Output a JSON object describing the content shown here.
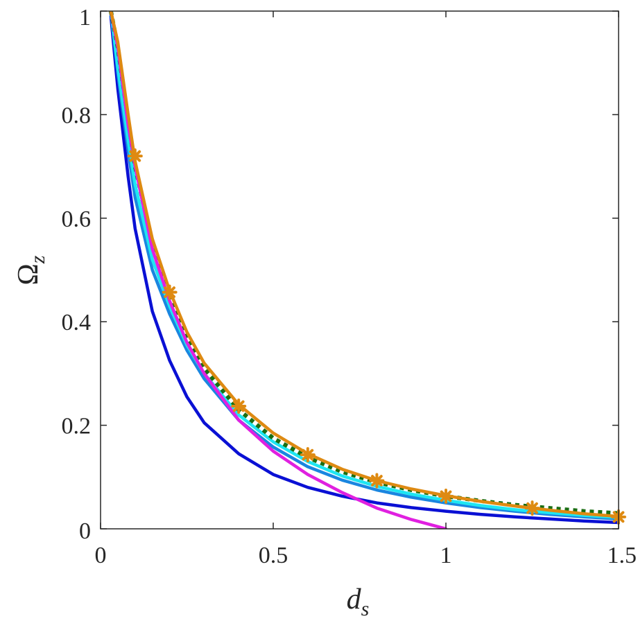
{
  "chart_data": {
    "type": "line",
    "xlabel": "d",
    "xlabel_sub": "s",
    "ylabel": "Ω",
    "ylabel_sub": "z",
    "xlim": [
      0,
      1.5
    ],
    "ylim": [
      0,
      1
    ],
    "xticks": [
      0,
      0.5,
      1,
      1.5
    ],
    "xtick_labels": [
      "0",
      "0.5",
      "1",
      "1.5"
    ],
    "yticks": [
      0,
      0.2,
      0.4,
      0.6,
      0.8,
      1
    ],
    "ytick_labels": [
      "0",
      "0.2",
      "0.4",
      "0.6",
      "0.8",
      "1"
    ],
    "grid": false,
    "series": [
      {
        "color": "#0a10d4",
        "style": "solid",
        "x": [
          0.03,
          0.05,
          0.08,
          0.1,
          0.15,
          0.2,
          0.25,
          0.3,
          0.4,
          0.5,
          0.6,
          0.7,
          0.8,
          0.9,
          1.0,
          1.1,
          1.2,
          1.3,
          1.4,
          1.5
        ],
        "y": [
          0.99,
          0.85,
          0.68,
          0.58,
          0.42,
          0.325,
          0.255,
          0.205,
          0.145,
          0.105,
          0.08,
          0.063,
          0.05,
          0.041,
          0.034,
          0.028,
          0.023,
          0.019,
          0.015,
          0.012
        ]
      },
      {
        "color": "#1a86e0",
        "style": "solid",
        "x": [
          0.03,
          0.05,
          0.08,
          0.1,
          0.15,
          0.2,
          0.25,
          0.3,
          0.4,
          0.5,
          0.6,
          0.7,
          0.8,
          0.9,
          1.0,
          1.1,
          1.2,
          1.3,
          1.4,
          1.5
        ],
        "y": [
          1.0,
          0.88,
          0.73,
          0.64,
          0.5,
          0.415,
          0.345,
          0.29,
          0.21,
          0.158,
          0.12,
          0.094,
          0.075,
          0.061,
          0.05,
          0.041,
          0.034,
          0.028,
          0.023,
          0.019
        ]
      },
      {
        "color": "#1ee6f2",
        "style": "solid",
        "x": [
          0.03,
          0.05,
          0.08,
          0.1,
          0.15,
          0.2,
          0.25,
          0.3,
          0.4,
          0.5,
          0.6,
          0.7,
          0.8,
          0.9,
          1.0,
          1.1,
          1.2,
          1.3,
          1.4,
          1.5
        ],
        "y": [
          1.0,
          0.89,
          0.75,
          0.665,
          0.52,
          0.43,
          0.355,
          0.3,
          0.22,
          0.168,
          0.13,
          0.102,
          0.082,
          0.067,
          0.055,
          0.045,
          0.037,
          0.031,
          0.026,
          0.022
        ]
      },
      {
        "color": "#1a6e12",
        "style": "dotted",
        "x": [
          0.03,
          0.05,
          0.08,
          0.1,
          0.15,
          0.2,
          0.25,
          0.3,
          0.4,
          0.5,
          0.6,
          0.7,
          0.8,
          0.9,
          1.0,
          1.1,
          1.2,
          1.3,
          1.4,
          1.5
        ],
        "y": [
          1.0,
          0.93,
          0.79,
          0.7,
          0.55,
          0.445,
          0.37,
          0.31,
          0.23,
          0.175,
          0.138,
          0.11,
          0.09,
          0.075,
          0.063,
          0.054,
          0.046,
          0.04,
          0.034,
          0.03
        ]
      },
      {
        "color": "#e020e0",
        "style": "solid",
        "x": [
          0.03,
          0.05,
          0.08,
          0.1,
          0.15,
          0.2,
          0.25,
          0.3,
          0.4,
          0.5,
          0.6,
          0.7,
          0.8,
          0.9,
          1.0
        ],
        "y": [
          1.0,
          0.93,
          0.78,
          0.7,
          0.54,
          0.44,
          0.36,
          0.3,
          0.21,
          0.15,
          0.105,
          0.07,
          0.04,
          0.018,
          0.0
        ]
      },
      {
        "color": "#de8a12",
        "style": "solid",
        "x": [
          0.03,
          0.05,
          0.08,
          0.1,
          0.15,
          0.2,
          0.25,
          0.3,
          0.4,
          0.5,
          0.6,
          0.7,
          0.8,
          0.9,
          1.0,
          1.1,
          1.2,
          1.3,
          1.4,
          1.5
        ],
        "y": [
          1.0,
          0.94,
          0.8,
          0.71,
          0.56,
          0.46,
          0.38,
          0.32,
          0.24,
          0.185,
          0.145,
          0.115,
          0.093,
          0.077,
          0.064,
          0.053,
          0.044,
          0.036,
          0.029,
          0.024
        ]
      }
    ],
    "markers": {
      "color": "#de8a12",
      "symbol": "asterisk",
      "x": [
        0.1,
        0.2,
        0.4,
        0.6,
        0.8,
        1.0,
        1.25,
        1.5
      ],
      "y": [
        0.72,
        0.457,
        0.237,
        0.143,
        0.093,
        0.063,
        0.04,
        0.023
      ]
    }
  }
}
